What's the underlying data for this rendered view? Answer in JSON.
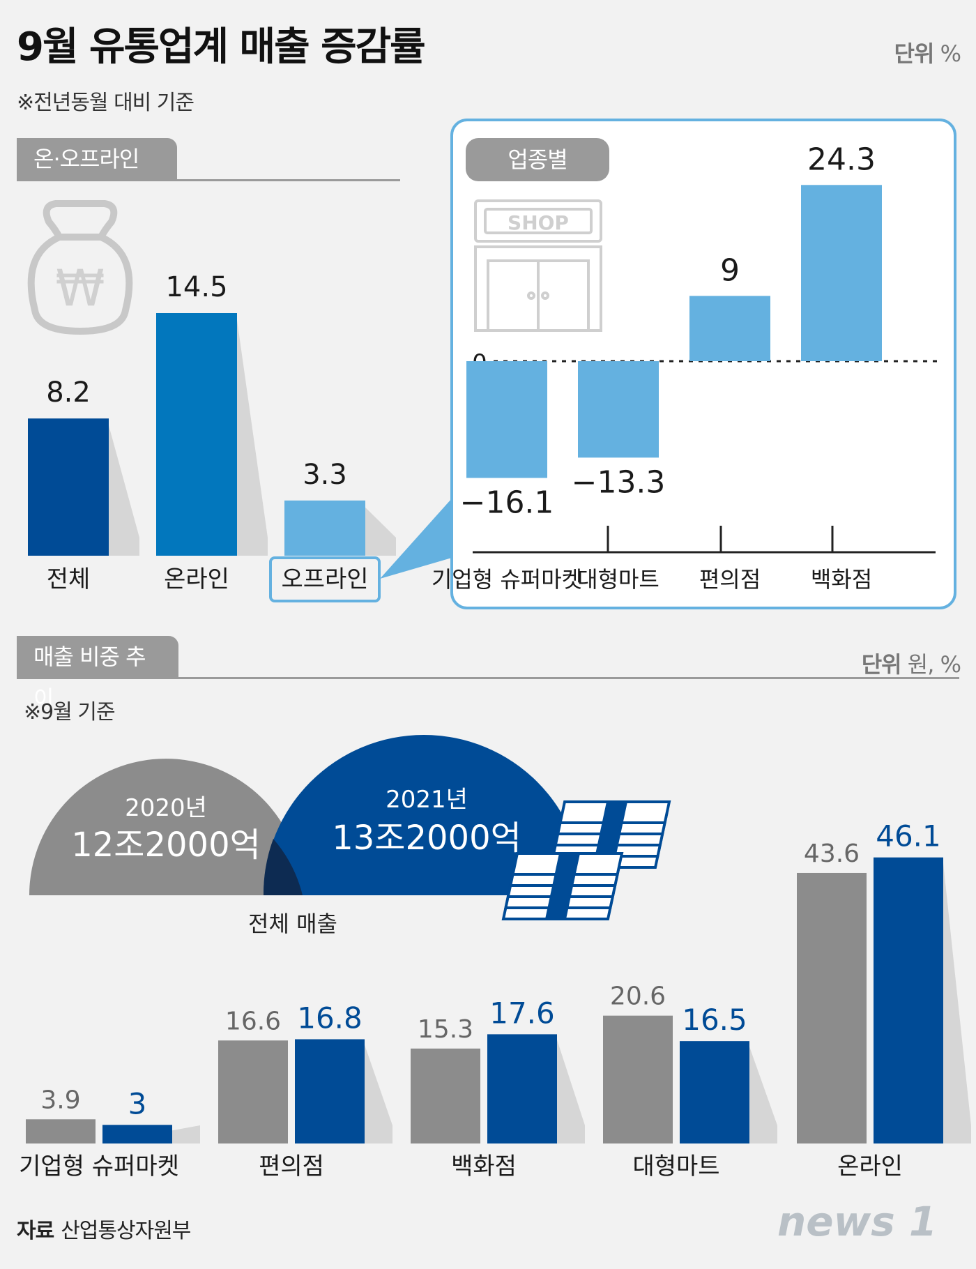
{
  "title": "9월 유통업계 매출 증감률",
  "unit_top": {
    "label": "단위",
    "value": "%"
  },
  "note_top": "※전년동월 대비 기준",
  "tab_onoff": "온·오프라인",
  "tab_sector": "업종별",
  "shop_sign": "SHOP",
  "tab_share": "매출 비중 추이",
  "unit_bottom": {
    "label": "단위",
    "value": "원, %"
  },
  "note_bottom": "※9월 기준",
  "won_symbol": "₩",
  "total_sales": {
    "label": "전체 매출",
    "year2020": "2020년",
    "amount2020": "12조2000억",
    "year2021": "2021년",
    "amount2021": "13조2000억"
  },
  "source": {
    "label": "자료",
    "value": "산업통상자원부"
  },
  "logo": "news 1",
  "colors": {
    "dark_blue": "#004b96",
    "mid_blue": "#0277bd",
    "light_blue": "#64b1e0",
    "gray": "#8c8c8c",
    "panel_border": "#64b1e0",
    "background": "#f2f2f2"
  },
  "chart_data": [
    {
      "type": "bar",
      "title": "온·오프라인",
      "categories": [
        "전체",
        "온라인",
        "오프라인"
      ],
      "values": [
        8.2,
        14.5,
        3.3
      ],
      "value_labels": [
        "8.2",
        "14.5",
        "3.3"
      ],
      "unit": "%",
      "highlight": "오프라인"
    },
    {
      "type": "bar",
      "title": "업종별",
      "categories": [
        "기업형 슈퍼마켓",
        "대형마트",
        "편의점",
        "백화점"
      ],
      "values": [
        -16.1,
        -13.3,
        9,
        24.3
      ],
      "value_labels": [
        "−16.1",
        "−13.3",
        "9",
        "24.3"
      ],
      "zero_label": "0",
      "unit": "%"
    },
    {
      "type": "bar",
      "title": "매출 비중 추이",
      "categories": [
        "기업형 슈퍼마켓",
        "편의점",
        "백화점",
        "대형마트",
        "온라인"
      ],
      "series": [
        {
          "values": [
            3.9,
            16.6,
            15.3,
            20.6,
            43.6
          ],
          "value_labels": [
            "3.9",
            "16.6",
            "15.3",
            "20.6",
            "43.6"
          ],
          "color": "#8c8c8c"
        },
        {
          "values": [
            3,
            16.8,
            17.6,
            16.5,
            46.1
          ],
          "value_labels": [
            "3",
            "16.8",
            "17.6",
            "16.5",
            "46.1"
          ],
          "color": "#004b96"
        }
      ],
      "unit": "%"
    }
  ]
}
